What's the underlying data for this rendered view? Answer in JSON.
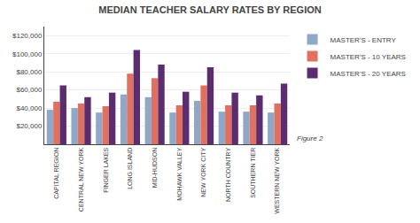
{
  "chart_data": {
    "type": "bar",
    "title": "MEDIAN TEACHER SALARY RATES BY REGION",
    "categories": [
      "CAPITAL REGION",
      "CENTRAL NEW YORK",
      "FINGER LAKES",
      "LONG ISLAND",
      "MID-HUDSON",
      "MOHAWK VALLEY",
      "NEW YORK CITY",
      "NORTH COUNTRY",
      "SOUTHERN TIER",
      "WESTERN NEW YORK"
    ],
    "series": [
      {
        "name": "MASTER'S - ENTRY",
        "color": "#8fa8c8",
        "values": [
          38000,
          40000,
          35000,
          55000,
          52000,
          35000,
          48000,
          36000,
          36000,
          35000
        ]
      },
      {
        "name": "MASTER'S - 10 YEARS",
        "color": "#e07060",
        "values": [
          47000,
          45000,
          42000,
          78000,
          73000,
          43000,
          65000,
          43000,
          43000,
          45000
        ]
      },
      {
        "name": "MASTER'S - 20 YEARS",
        "color": "#5b2d6e",
        "values": [
          65000,
          52000,
          57000,
          104000,
          88000,
          58000,
          85000,
          57000,
          54000,
          67000
        ]
      }
    ],
    "ylim": [
      0,
      130000
    ],
    "yticks": [
      {
        "value": 20000,
        "label": "$20,000"
      },
      {
        "value": 40000,
        "label": "$40,000"
      },
      {
        "value": 60000,
        "label": "$60,000"
      },
      {
        "value": 80000,
        "label": "$80,000"
      },
      {
        "value": 100000,
        "label": "$100,000"
      },
      {
        "value": 120000,
        "label": "$120,000"
      }
    ],
    "grid": true,
    "legend": "upper right",
    "annotations": [
      "Figure 2"
    ]
  }
}
